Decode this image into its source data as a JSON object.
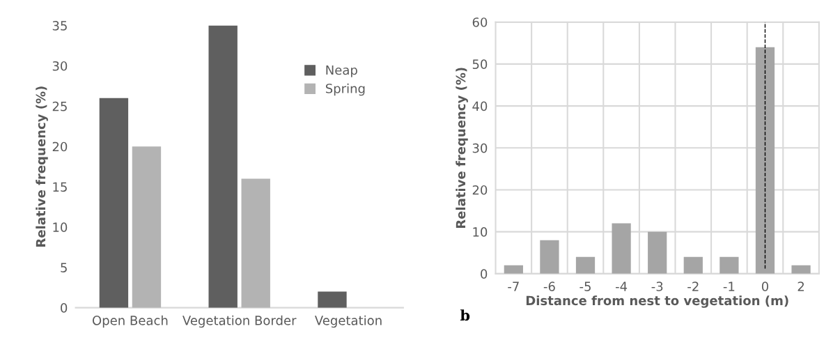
{
  "chart_data": [
    {
      "type": "bar",
      "ylabel": "Relative frequency (%)",
      "categories": [
        "Open Beach",
        "Vegetation Border",
        "Vegetation"
      ],
      "series": [
        {
          "name": "Neap",
          "color": "#5f5f5f",
          "values": [
            26,
            35,
            2
          ]
        },
        {
          "name": "Spring",
          "color": "#b3b3b3",
          "values": [
            20,
            16,
            0
          ]
        }
      ],
      "ylim": [
        0,
        35
      ],
      "yticks": [
        0,
        5,
        10,
        15,
        20,
        25,
        30,
        35
      ],
      "grid": false,
      "legend": "top right"
    },
    {
      "type": "bar",
      "xlabel": "Distance from nest to vegetation (m)",
      "ylabel": "Relative frequency (%)",
      "categories": [
        "-7",
        "-6",
        "-5",
        "-4",
        "-3",
        "-2",
        "-1",
        "0",
        "2"
      ],
      "series": [
        {
          "color": "#a5a5a5",
          "values": [
            2,
            8,
            4,
            12,
            10,
            4,
            4,
            54,
            2
          ]
        }
      ],
      "ylim": [
        0,
        60
      ],
      "yticks": [
        0,
        10,
        20,
        30,
        40,
        50,
        60
      ],
      "grid": true,
      "ref_lines": [
        {
          "axis": "x",
          "value": "0",
          "color": "#000000",
          "line_style": "dashed"
        }
      ],
      "annotations": [
        "b"
      ]
    }
  ]
}
